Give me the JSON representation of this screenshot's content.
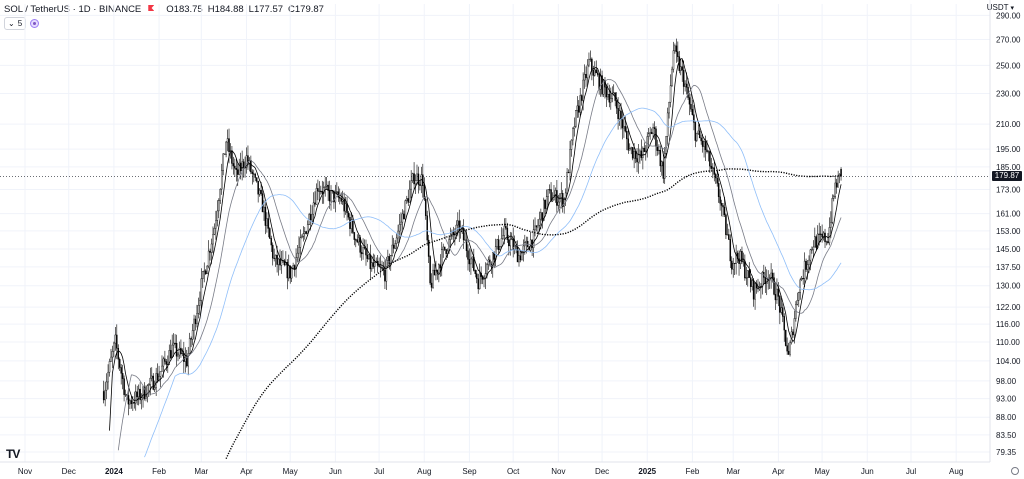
{
  "header": {
    "title": "SOL / TetherUS · 1D · BINANCE",
    "open_label": "O",
    "open_value": "183.75",
    "high_label": "H",
    "high_value": "184.88",
    "low_label": "L",
    "low_value": "177.57",
    "close_label": "C",
    "close_value": "179.87",
    "collapse_label": "5",
    "currency": "USDT"
  },
  "last_price_label": "179.87",
  "colors": {
    "candle": "#000000",
    "ma_fast": "#000000",
    "ma_mid": "#787b86",
    "ma_blue": "#90bff9",
    "ma_long": "#000000",
    "axis_text": "#131722",
    "grid": "#f0f3fa"
  },
  "chart_data": {
    "type": "candlestick",
    "symbol": "SOL / TetherUS",
    "timeframe": "1D",
    "exchange": "BINANCE",
    "last_ohlc": {
      "open": 183.75,
      "high": 184.88,
      "low": 177.57,
      "close": 179.87
    },
    "y_scale": "log",
    "y_ticks": [
      79.35,
      83.5,
      88.0,
      93.0,
      98.0,
      104.0,
      110.0,
      116.0,
      122.0,
      130.0,
      137.5,
      145.0,
      153.0,
      161.0,
      173.0,
      185.0,
      195.0,
      210.0,
      230.0,
      250.0,
      270.0,
      290.0
    ],
    "y_tick_labels": [
      "79.35",
      "83.50",
      "88.00",
      "93.00",
      "98.00",
      "104.00",
      "110.00",
      "116.00",
      "122.00",
      "130.00",
      "137.50",
      "145.00",
      "153.00",
      "161.00",
      "173.00",
      "185.00",
      "195.00",
      "210.00",
      "230.00",
      "250.00",
      "270.00",
      "290.00"
    ],
    "ylim": [
      77.5,
      300
    ],
    "x_ticks": [
      "Nov",
      "Dec",
      "2024",
      "Feb",
      "Mar",
      "Apr",
      "May",
      "Jun",
      "Jul",
      "Aug",
      "Sep",
      "Oct",
      "Nov",
      "Dec",
      "2025",
      "Feb",
      "Mar",
      "Apr",
      "May",
      "Jun",
      "Jul",
      "Aug"
    ],
    "x_tick_bold": [
      false,
      false,
      true,
      false,
      false,
      false,
      false,
      false,
      false,
      false,
      false,
      false,
      false,
      false,
      true,
      false,
      false,
      false,
      false,
      false,
      false,
      false
    ],
    "price_anchors": [
      [
        "2023-12-25",
        95
      ],
      [
        "2024-01-02",
        110
      ],
      [
        "2024-01-10",
        92
      ],
      [
        "2024-01-20",
        94
      ],
      [
        "2024-02-01",
        100
      ],
      [
        "2024-02-10",
        108
      ],
      [
        "2024-02-20",
        104
      ],
      [
        "2024-03-01",
        130
      ],
      [
        "2024-03-10",
        155
      ],
      [
        "2024-03-18",
        200
      ],
      [
        "2024-03-25",
        180
      ],
      [
        "2024-04-01",
        190
      ],
      [
        "2024-04-12",
        165
      ],
      [
        "2024-04-20",
        140
      ],
      [
        "2024-05-01",
        135
      ],
      [
        "2024-05-10",
        150
      ],
      [
        "2024-05-20",
        175
      ],
      [
        "2024-05-28",
        170
      ],
      [
        "2024-06-05",
        168
      ],
      [
        "2024-06-15",
        150
      ],
      [
        "2024-06-25",
        138
      ],
      [
        "2024-07-05",
        135
      ],
      [
        "2024-07-15",
        155
      ],
      [
        "2024-07-25",
        180
      ],
      [
        "2024-07-31",
        178
      ],
      [
        "2024-08-05",
        130
      ],
      [
        "2024-08-15",
        145
      ],
      [
        "2024-08-25",
        155
      ],
      [
        "2024-09-07",
        132
      ],
      [
        "2024-09-15",
        140
      ],
      [
        "2024-09-25",
        152
      ],
      [
        "2024-10-05",
        142
      ],
      [
        "2024-10-15",
        150
      ],
      [
        "2024-10-25",
        170
      ],
      [
        "2024-11-05",
        168
      ],
      [
        "2024-11-12",
        210
      ],
      [
        "2024-11-22",
        252
      ],
      [
        "2024-12-01",
        235
      ],
      [
        "2024-12-10",
        225
      ],
      [
        "2024-12-20",
        195
      ],
      [
        "2024-12-28",
        190
      ],
      [
        "2025-01-05",
        208
      ],
      [
        "2025-01-12",
        182
      ],
      [
        "2025-01-19",
        262
      ],
      [
        "2025-01-26",
        240
      ],
      [
        "2025-02-03",
        205
      ],
      [
        "2025-02-10",
        195
      ],
      [
        "2025-02-20",
        168
      ],
      [
        "2025-02-28",
        140
      ],
      [
        "2025-03-05",
        142
      ],
      [
        "2025-03-15",
        128
      ],
      [
        "2025-03-25",
        135
      ],
      [
        "2025-04-01",
        125
      ],
      [
        "2025-04-08",
        105
      ],
      [
        "2025-04-15",
        130
      ],
      [
        "2025-04-25",
        148
      ],
      [
        "2025-05-05",
        150
      ],
      [
        "2025-05-10",
        175
      ],
      [
        "2025-05-14",
        179.87
      ]
    ],
    "moving_averages": [
      {
        "window": 7,
        "color": "#000000",
        "style": "solid"
      },
      {
        "window": 20,
        "color": "#787b86",
        "style": "solid"
      },
      {
        "window": 50,
        "color": "#90bff9",
        "style": "solid"
      },
      {
        "window": 200,
        "color": "#000000",
        "style": "dotted"
      }
    ]
  }
}
